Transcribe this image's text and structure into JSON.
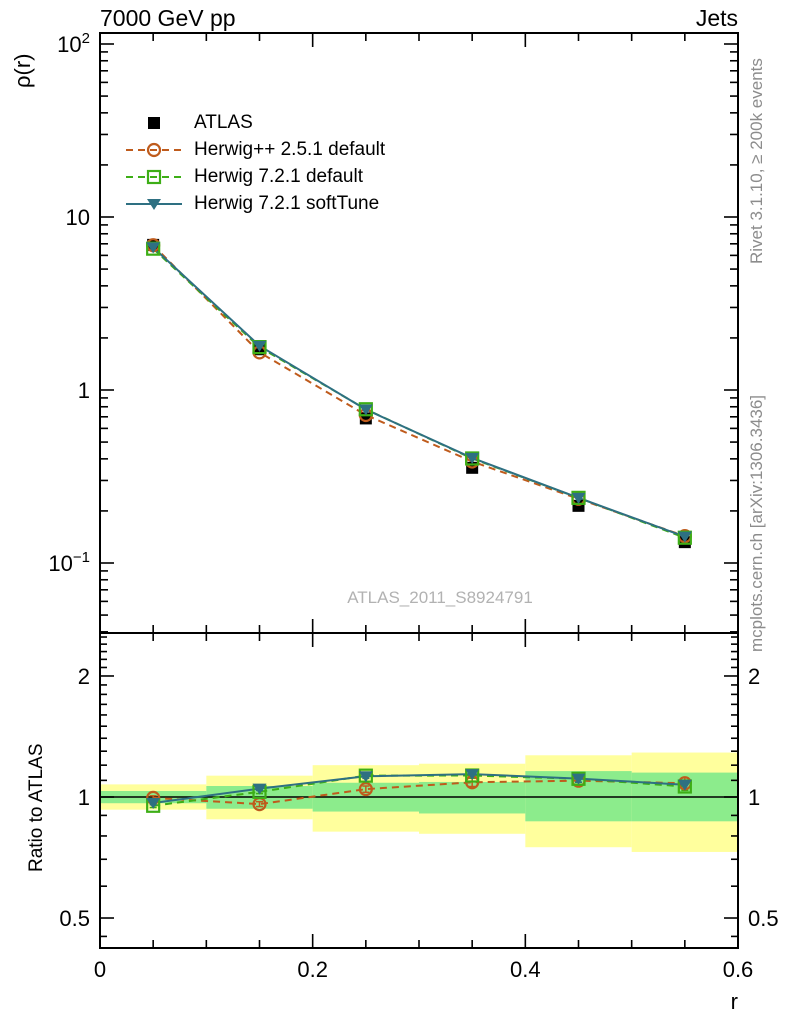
{
  "header": {
    "title_left": "7000 GeV pp",
    "title_right": "Jets"
  },
  "side_texts": {
    "right_top": "Rivet 3.1.10, ≥ 200k events",
    "right_bottom": "mcplots.cern.ch [arXiv:1306.3436]"
  },
  "watermark": "ATLAS_2011_S8924791",
  "colors": {
    "atlas": "#000000",
    "herwigpp": "#bf5b1c",
    "herwig_default": "#3dae16",
    "herwig_soft": "#2e7082",
    "band_yellow": "#ffff9d",
    "band_green": "#8cec8c",
    "side_text": "#8c8c8c",
    "watermark_color": "#b2b2b2"
  },
  "chart_data": {
    "type": "line",
    "title": "7000 GeV pp — Jets",
    "xlabel": "r",
    "ylabel_main": "ρ(r)",
    "ylabel_ratio": "Ratio to ATLAS",
    "x_points": [
      0.05,
      0.15,
      0.25,
      0.35,
      0.45,
      0.55
    ],
    "bin_edges": [
      0,
      0.1,
      0.2,
      0.3,
      0.4,
      0.5,
      0.6
    ],
    "series": [
      {
        "name": "atlas",
        "legend_label": "ATLAS",
        "color_key": "atlas",
        "style": "none",
        "marker": "square-filled",
        "values": [
          6.9,
          1.72,
          0.685,
          0.355,
          0.214,
          0.132
        ],
        "ratio": null,
        "ratio_err": null
      },
      {
        "name": "herwigpp",
        "legend_label": "Herwig++ 2.5.1 default",
        "color_key": "herwigpp",
        "style": "dashed",
        "marker": "circle-open",
        "values": [
          6.87,
          1.65,
          0.717,
          0.386,
          0.235,
          0.143
        ],
        "ratio": [
          0.995,
          0.96,
          1.046,
          1.088,
          1.098,
          1.082
        ],
        "ratio_err": [
          0.012,
          0.014,
          0.018,
          0.024,
          0.03,
          0.032
        ]
      },
      {
        "name": "herwig721-default",
        "legend_label": "Herwig 7.2.1 default",
        "color_key": "herwig_default",
        "style": "dashed",
        "marker": "square-open",
        "values": [
          6.56,
          1.77,
          0.774,
          0.402,
          0.238,
          0.14
        ],
        "ratio": [
          0.951,
          1.03,
          1.13,
          1.131,
          1.11,
          1.062
        ],
        "ratio_err": [
          0.01,
          0.01,
          0.012,
          0.015,
          0.02,
          0.022
        ]
      },
      {
        "name": "herwig721-softtune",
        "legend_label": "Herwig 7.2.1 softTune",
        "color_key": "herwig_soft",
        "style": "solid",
        "marker": "triangle-down-filled",
        "values": [
          6.67,
          1.8,
          0.771,
          0.405,
          0.238,
          0.142
        ],
        "ratio": [
          0.966,
          1.049,
          1.126,
          1.14,
          1.111,
          1.073
        ],
        "ratio_err": [
          0.01,
          0.01,
          0.012,
          0.015,
          0.02,
          0.022
        ]
      }
    ],
    "bands": {
      "yellow": [
        [
          0.93,
          1.075
        ],
        [
          0.88,
          1.13
        ],
        [
          0.82,
          1.2
        ],
        [
          0.81,
          1.21
        ],
        [
          0.75,
          1.27
        ],
        [
          0.73,
          1.29
        ]
      ],
      "green": [
        [
          0.965,
          1.035
        ],
        [
          0.935,
          1.065
        ],
        [
          0.92,
          1.085
        ],
        [
          0.91,
          1.09
        ],
        [
          0.87,
          1.16
        ],
        [
          0.87,
          1.15
        ]
      ]
    },
    "ratio_reference": 1,
    "axes": {
      "x": {
        "min": 0,
        "max": 0.6,
        "minor_step": 0.05,
        "majors": [
          {
            "v": 0,
            "label": "0"
          },
          {
            "v": 0.2,
            "label": "0.2"
          },
          {
            "v": 0.4,
            "label": "0.4"
          },
          {
            "v": 0.6,
            "label": "0.6"
          }
        ]
      },
      "y_main": {
        "min": 0.039,
        "max": 115,
        "scale": "log",
        "majors": [
          {
            "v": 100,
            "base": "10",
            "sup": "2"
          },
          {
            "v": 10,
            "base": "10",
            "sup": ""
          },
          {
            "v": 1,
            "base": "1",
            "sup": ""
          },
          {
            "v": 0.1,
            "base": "10",
            "sup": "−1"
          }
        ]
      },
      "y_ratio": {
        "min": 0.41,
        "max": 2.56,
        "scale": "log",
        "majors": [
          {
            "v": 2,
            "label": "2"
          },
          {
            "v": 1,
            "label": "1"
          },
          {
            "v": 0.5,
            "label": "0.5"
          }
        ],
        "minors": [
          0.45,
          0.6,
          0.7,
          0.8,
          0.9,
          1.1,
          1.2,
          1.3,
          1.4,
          1.5,
          1.6,
          1.7,
          1.8,
          1.9,
          2.1,
          2.2,
          2.3,
          2.4,
          2.5
        ]
      }
    },
    "legend_position": "top-left"
  }
}
